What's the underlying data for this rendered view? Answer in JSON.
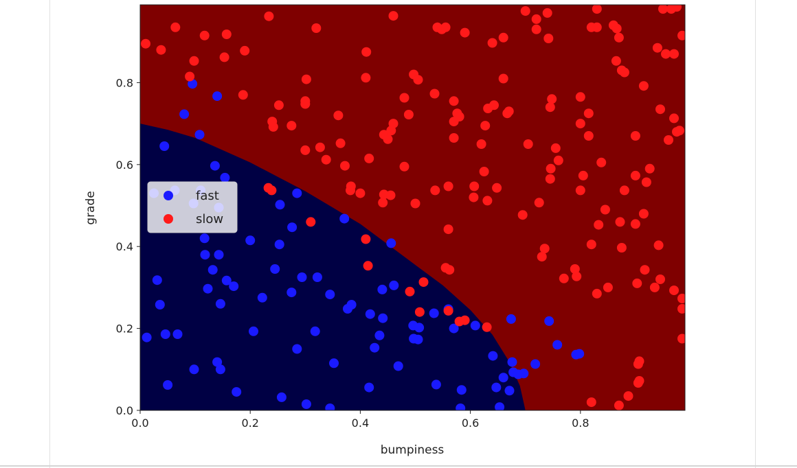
{
  "chart_data": {
    "type": "scatter",
    "title": "",
    "xlabel": "bumpiness",
    "ylabel": "grade",
    "xlim": [
      0,
      0.99
    ],
    "ylim": [
      0,
      0.99
    ],
    "xticks": [
      0.0,
      0.2,
      0.4,
      0.6,
      0.8
    ],
    "yticks": [
      0.0,
      0.2,
      0.4,
      0.6,
      0.8
    ],
    "xtick_labels": [
      "0.0",
      "0.2",
      "0.4",
      "0.6",
      "0.8"
    ],
    "ytick_labels": [
      "0.0",
      "0.2",
      "0.4",
      "0.6",
      "0.8"
    ],
    "grid": false,
    "legend_position": "center-left",
    "background_regions": [
      {
        "label": "fast",
        "color": "#000044"
      },
      {
        "label": "slow",
        "color": "#7f0000"
      }
    ],
    "series": [
      {
        "name": "fast",
        "color": "#1a1aff",
        "points": [
          [
            0.095,
            0.797
          ],
          [
            0.14,
            0.767
          ],
          [
            0.08,
            0.723
          ],
          [
            0.108,
            0.673
          ],
          [
            0.044,
            0.645
          ],
          [
            0.136,
            0.597
          ],
          [
            0.154,
            0.568
          ],
          [
            0.063,
            0.537
          ],
          [
            0.11,
            0.537
          ],
          [
            0.025,
            0.53
          ],
          [
            0.097,
            0.505
          ],
          [
            0.254,
            0.502
          ],
          [
            0.285,
            0.53
          ],
          [
            0.143,
            0.495
          ],
          [
            0.276,
            0.447
          ],
          [
            0.117,
            0.42
          ],
          [
            0.2,
            0.415
          ],
          [
            0.253,
            0.405
          ],
          [
            0.118,
            0.38
          ],
          [
            0.143,
            0.38
          ],
          [
            0.132,
            0.343
          ],
          [
            0.245,
            0.345
          ],
          [
            0.031,
            0.318
          ],
          [
            0.157,
            0.317
          ],
          [
            0.17,
            0.303
          ],
          [
            0.123,
            0.297
          ],
          [
            0.294,
            0.325
          ],
          [
            0.322,
            0.325
          ],
          [
            0.275,
            0.288
          ],
          [
            0.345,
            0.283
          ],
          [
            0.222,
            0.275
          ],
          [
            0.036,
            0.258
          ],
          [
            0.146,
            0.26
          ],
          [
            0.377,
            0.248
          ],
          [
            0.384,
            0.258
          ],
          [
            0.371,
            0.468
          ],
          [
            0.456,
            0.408
          ],
          [
            0.461,
            0.305
          ],
          [
            0.44,
            0.295
          ],
          [
            0.418,
            0.235
          ],
          [
            0.441,
            0.225
          ],
          [
            0.426,
            0.153
          ],
          [
            0.435,
            0.183
          ],
          [
            0.496,
            0.207
          ],
          [
            0.507,
            0.202
          ],
          [
            0.497,
            0.175
          ],
          [
            0.505,
            0.173
          ],
          [
            0.534,
            0.237
          ],
          [
            0.56,
            0.247
          ],
          [
            0.57,
            0.2
          ],
          [
            0.609,
            0.207
          ],
          [
            0.318,
            0.193
          ],
          [
            0.206,
            0.193
          ],
          [
            0.012,
            0.178
          ],
          [
            0.046,
            0.186
          ],
          [
            0.068,
            0.186
          ],
          [
            0.285,
            0.15
          ],
          [
            0.641,
            0.133
          ],
          [
            0.674,
            0.223
          ],
          [
            0.676,
            0.118
          ],
          [
            0.678,
            0.093
          ],
          [
            0.66,
            0.08
          ],
          [
            0.687,
            0.088
          ],
          [
            0.697,
            0.09
          ],
          [
            0.718,
            0.113
          ],
          [
            0.743,
            0.218
          ],
          [
            0.758,
            0.16
          ],
          [
            0.792,
            0.136
          ],
          [
            0.798,
            0.138
          ],
          [
            0.14,
            0.118
          ],
          [
            0.146,
            0.1
          ],
          [
            0.098,
            0.1
          ],
          [
            0.352,
            0.115
          ],
          [
            0.469,
            0.108
          ],
          [
            0.05,
            0.062
          ],
          [
            0.416,
            0.056
          ],
          [
            0.538,
            0.063
          ],
          [
            0.584,
            0.05
          ],
          [
            0.647,
            0.056
          ],
          [
            0.671,
            0.048
          ],
          [
            0.175,
            0.045
          ],
          [
            0.257,
            0.032
          ],
          [
            0.302,
            0.015
          ],
          [
            0.345,
            0.005
          ],
          [
            0.582,
            0.005
          ],
          [
            0.653,
            0.008
          ]
        ]
      },
      {
        "name": "slow",
        "color": "#ff1a1a",
        "points": [
          [
            0.01,
            0.895
          ],
          [
            0.038,
            0.88
          ],
          [
            0.064,
            0.935
          ],
          [
            0.117,
            0.915
          ],
          [
            0.157,
            0.918
          ],
          [
            0.234,
            0.962
          ],
          [
            0.32,
            0.933
          ],
          [
            0.098,
            0.853
          ],
          [
            0.153,
            0.862
          ],
          [
            0.19,
            0.878
          ],
          [
            0.09,
            0.815
          ],
          [
            0.187,
            0.77
          ],
          [
            0.252,
            0.745
          ],
          [
            0.3,
            0.748
          ],
          [
            0.3,
            0.755
          ],
          [
            0.24,
            0.705
          ],
          [
            0.242,
            0.692
          ],
          [
            0.275,
            0.695
          ],
          [
            0.302,
            0.808
          ],
          [
            0.327,
            0.642
          ],
          [
            0.338,
            0.612
          ],
          [
            0.36,
            0.72
          ],
          [
            0.364,
            0.652
          ],
          [
            0.372,
            0.597
          ],
          [
            0.382,
            0.537
          ],
          [
            0.383,
            0.547
          ],
          [
            0.4,
            0.53
          ],
          [
            0.411,
            0.875
          ],
          [
            0.41,
            0.812
          ],
          [
            0.416,
            0.615
          ],
          [
            0.3,
            0.635
          ],
          [
            0.233,
            0.543
          ],
          [
            0.239,
            0.537
          ],
          [
            0.31,
            0.46
          ],
          [
            0.41,
            0.418
          ],
          [
            0.414,
            0.353
          ],
          [
            0.441,
            0.507
          ],
          [
            0.443,
            0.527
          ],
          [
            0.455,
            0.525
          ],
          [
            0.443,
            0.673
          ],
          [
            0.456,
            0.683
          ],
          [
            0.46,
            0.7
          ],
          [
            0.45,
            0.662
          ],
          [
            0.46,
            0.963
          ],
          [
            0.48,
            0.595
          ],
          [
            0.48,
            0.763
          ],
          [
            0.488,
            0.722
          ],
          [
            0.497,
            0.82
          ],
          [
            0.5,
            0.505
          ],
          [
            0.505,
            0.807
          ],
          [
            0.49,
            0.29
          ],
          [
            0.508,
            0.24
          ],
          [
            0.515,
            0.313
          ],
          [
            0.536,
            0.537
          ],
          [
            0.535,
            0.773
          ],
          [
            0.54,
            0.935
          ],
          [
            0.548,
            0.93
          ],
          [
            0.555,
            0.935
          ],
          [
            0.56,
            0.547
          ],
          [
            0.56,
            0.442
          ],
          [
            0.562,
            0.343
          ],
          [
            0.555,
            0.348
          ],
          [
            0.56,
            0.243
          ],
          [
            0.57,
            0.755
          ],
          [
            0.57,
            0.705
          ],
          [
            0.576,
            0.725
          ],
          [
            0.57,
            0.665
          ],
          [
            0.58,
            0.717
          ],
          [
            0.58,
            0.217
          ],
          [
            0.59,
            0.22
          ],
          [
            0.59,
            0.922
          ],
          [
            0.607,
            0.547
          ],
          [
            0.606,
            0.52
          ],
          [
            0.62,
            0.65
          ],
          [
            0.625,
            0.583
          ],
          [
            0.627,
            0.695
          ],
          [
            0.631,
            0.512
          ],
          [
            0.632,
            0.737
          ],
          [
            0.64,
            0.897
          ],
          [
            0.648,
            0.543
          ],
          [
            0.66,
            0.91
          ],
          [
            0.66,
            0.81
          ],
          [
            0.667,
            0.725
          ],
          [
            0.67,
            0.73
          ],
          [
            0.63,
            0.203
          ],
          [
            0.695,
            0.477
          ],
          [
            0.7,
            0.975
          ],
          [
            0.72,
            0.955
          ],
          [
            0.72,
            0.93
          ],
          [
            0.74,
            0.97
          ],
          [
            0.742,
            0.908
          ],
          [
            0.725,
            0.507
          ],
          [
            0.73,
            0.375
          ],
          [
            0.735,
            0.395
          ],
          [
            0.746,
            0.59
          ],
          [
            0.745,
            0.565
          ],
          [
            0.745,
            0.74
          ],
          [
            0.748,
            0.76
          ],
          [
            0.755,
            0.64
          ],
          [
            0.76,
            0.61
          ],
          [
            0.77,
            0.322
          ],
          [
            0.79,
            0.345
          ],
          [
            0.793,
            0.327
          ],
          [
            0.8,
            0.537
          ],
          [
            0.8,
            0.7
          ],
          [
            0.8,
            0.765
          ],
          [
            0.805,
            0.573
          ],
          [
            0.815,
            0.725
          ],
          [
            0.815,
            0.67
          ],
          [
            0.82,
            0.935
          ],
          [
            0.83,
            0.935
          ],
          [
            0.83,
            0.98
          ],
          [
            0.82,
            0.405
          ],
          [
            0.83,
            0.285
          ],
          [
            0.833,
            0.453
          ],
          [
            0.838,
            0.605
          ],
          [
            0.845,
            0.49
          ],
          [
            0.85,
            0.3
          ],
          [
            0.86,
            0.94
          ],
          [
            0.866,
            0.932
          ],
          [
            0.865,
            0.853
          ],
          [
            0.87,
            0.91
          ],
          [
            0.875,
            0.83
          ],
          [
            0.88,
            0.825
          ],
          [
            0.872,
            0.46
          ],
          [
            0.875,
            0.397
          ],
          [
            0.88,
            0.537
          ],
          [
            0.9,
            0.67
          ],
          [
            0.9,
            0.573
          ],
          [
            0.9,
            0.455
          ],
          [
            0.903,
            0.31
          ],
          [
            0.905,
            0.113
          ],
          [
            0.907,
            0.12
          ],
          [
            0.905,
            0.067
          ],
          [
            0.907,
            0.072
          ],
          [
            0.915,
            0.792
          ],
          [
            0.915,
            0.48
          ],
          [
            0.917,
            0.343
          ],
          [
            0.92,
            0.557
          ],
          [
            0.926,
            0.59
          ],
          [
            0.935,
            0.3
          ],
          [
            0.94,
            0.885
          ],
          [
            0.942,
            0.403
          ],
          [
            0.945,
            0.735
          ],
          [
            0.945,
            0.32
          ],
          [
            0.955,
            0.87
          ],
          [
            0.96,
            0.66
          ],
          [
            0.965,
            0.98
          ],
          [
            0.97,
            0.293
          ],
          [
            0.97,
            0.87
          ],
          [
            0.97,
            0.713
          ],
          [
            0.975,
            0.68
          ],
          [
            0.98,
            0.683
          ],
          [
            0.985,
            0.273
          ],
          [
            0.985,
            0.248
          ],
          [
            0.985,
            0.175
          ],
          [
            0.985,
            0.915
          ],
          [
            0.95,
            0.98
          ],
          [
            0.975,
            0.985
          ],
          [
            0.82,
            0.02
          ],
          [
            0.87,
            0.012
          ],
          [
            0.887,
            0.035
          ],
          [
            0.705,
            0.65
          ],
          [
            0.643,
            0.745
          ]
        ]
      }
    ]
  }
}
